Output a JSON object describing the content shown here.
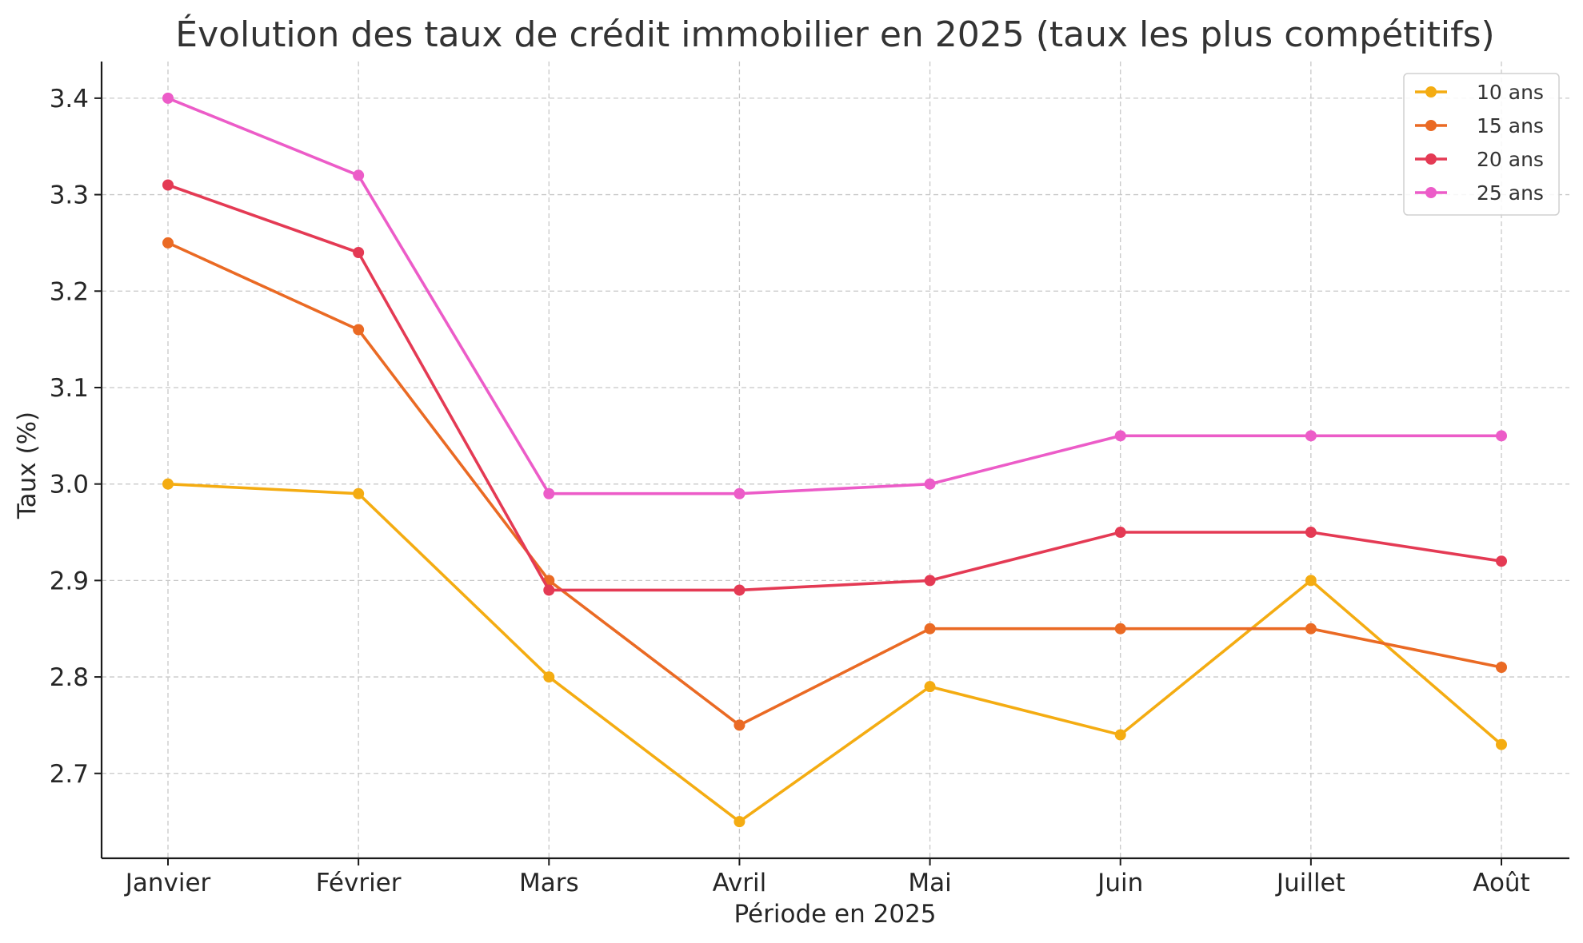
{
  "chart_data": {
    "type": "line",
    "title": "Évolution des taux de crédit immobilier en 2025 (taux les plus compétitifs)",
    "xlabel": "Période en 2025",
    "ylabel": "Taux (%)",
    "categories": [
      "Janvier",
      "Février",
      "Mars",
      "Avril",
      "Mai",
      "Juin",
      "Juillet",
      "Août"
    ],
    "ylim": [
      2.612,
      3.438
    ],
    "yticks": [
      2.7,
      2.8,
      2.9,
      3.0,
      3.1,
      3.2,
      3.3,
      3.4
    ],
    "ytick_labels": [
      "2.7",
      "2.8",
      "2.9",
      "3.0",
      "3.1",
      "3.2",
      "3.3",
      "3.4"
    ],
    "grid": true,
    "legend_position": "top-right",
    "series": [
      {
        "name": "10 ans",
        "color": "#f4ac12",
        "values": [
          3.0,
          2.99,
          2.8,
          2.65,
          2.79,
          2.74,
          2.9,
          2.73
        ]
      },
      {
        "name": "15 ans",
        "color": "#ea6a24",
        "values": [
          3.25,
          3.16,
          2.9,
          2.75,
          2.85,
          2.85,
          2.85,
          2.81
        ]
      },
      {
        "name": "20 ans",
        "color": "#e43a54",
        "values": [
          3.31,
          3.24,
          2.89,
          2.89,
          2.9,
          2.95,
          2.95,
          2.92
        ]
      },
      {
        "name": "25 ans",
        "color": "#ec5cc8",
        "values": [
          3.4,
          3.32,
          2.99,
          2.99,
          3.0,
          3.05,
          3.05,
          3.05
        ]
      }
    ]
  }
}
